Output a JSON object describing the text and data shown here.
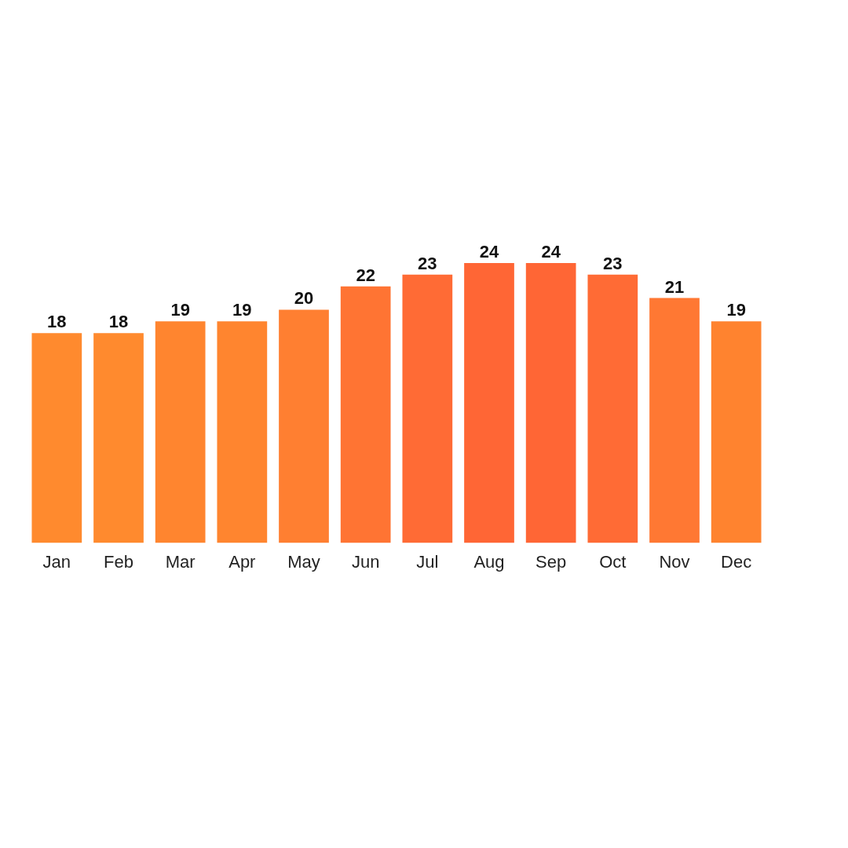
{
  "chart_data": {
    "type": "bar",
    "categories": [
      "Jan",
      "Feb",
      "Mar",
      "Apr",
      "May",
      "Jun",
      "Jul",
      "Aug",
      "Sep",
      "Oct",
      "Nov",
      "Dec"
    ],
    "values": [
      18,
      18,
      19,
      19,
      20,
      22,
      23,
      24,
      24,
      23,
      21,
      19
    ],
    "colors": [
      "#ff8a2e",
      "#ff8a2e",
      "#ff852f",
      "#ff852f",
      "#ff7f31",
      "#ff7433",
      "#ff6b35",
      "#ff6635",
      "#ff6635",
      "#ff6b35",
      "#ff7833",
      "#ff832f"
    ],
    "data_labels": true,
    "grid": false,
    "legend": false
  }
}
